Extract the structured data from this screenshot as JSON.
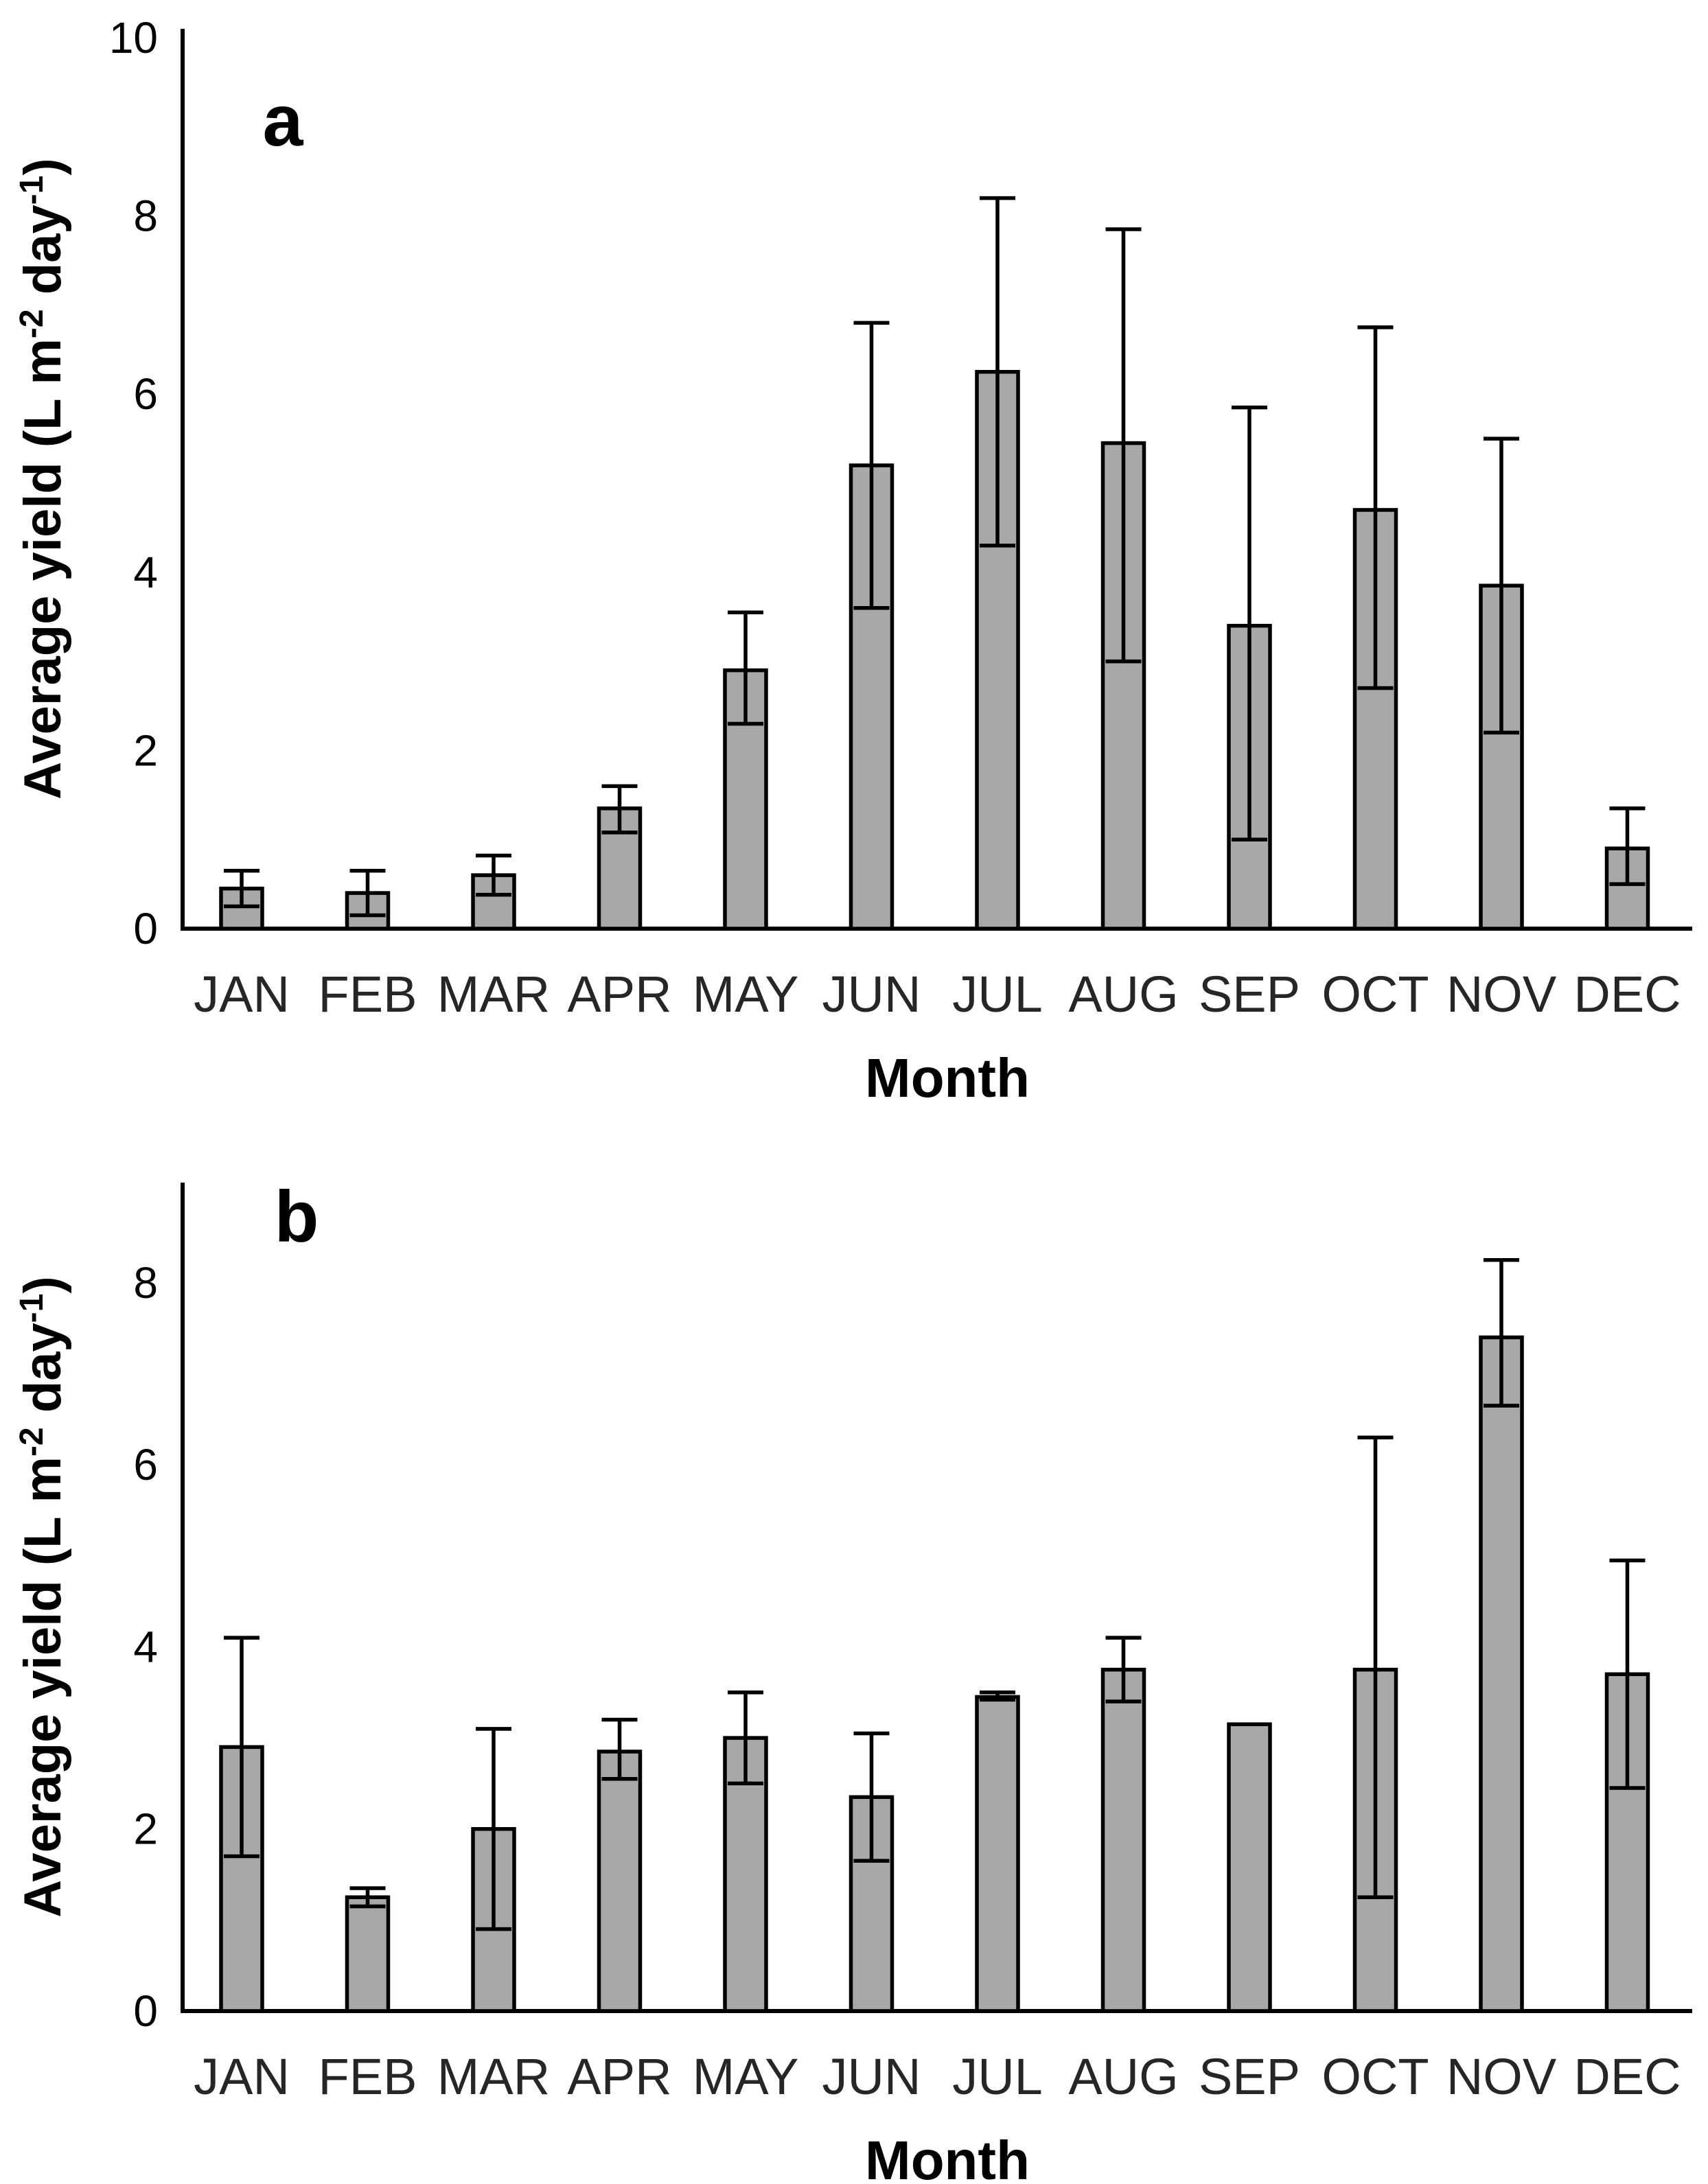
{
  "figure": {
    "background": "#ffffff",
    "ylabel": "Average yield (L m⁻² day⁻¹)",
    "ylabel_parts": [
      {
        "text": "Average yield (L m",
        "sup": false
      },
      {
        "text": "-2",
        "sup": true
      },
      {
        "text": " day",
        "sup": false
      },
      {
        "text": "-1",
        "sup": true
      },
      {
        "text": ")",
        "sup": false
      }
    ],
    "xlabel": "Month",
    "colors": {
      "bar_fill": "#a8a8a8",
      "bar_stroke": "#000000",
      "axis": "#000000",
      "tick_text": "#000000",
      "month_text": "#262626",
      "title_text": "#000000"
    }
  },
  "chart_data": [
    {
      "type": "bar",
      "panel_label": "a",
      "title": "",
      "ylabel": "Average yield (L m⁻² day⁻¹)",
      "xlabel": "Month",
      "categories": [
        "JAN",
        "FEB",
        "MAR",
        "APR",
        "MAY",
        "JUN",
        "JUL",
        "AUG",
        "SEP",
        "OCT",
        "NOV",
        "DEC"
      ],
      "values": [
        0.45,
        0.4,
        0.6,
        1.35,
        2.9,
        5.2,
        6.25,
        5.45,
        3.4,
        4.7,
        3.85,
        0.9
      ],
      "error_low": [
        0.25,
        0.15,
        0.38,
        1.08,
        2.3,
        3.6,
        4.3,
        3.0,
        1.0,
        2.7,
        2.2,
        0.5
      ],
      "error_high": [
        0.65,
        0.65,
        0.82,
        1.6,
        3.55,
        6.8,
        8.2,
        7.85,
        5.85,
        6.75,
        5.5,
        1.35
      ],
      "yticks": [
        0,
        2,
        4,
        6,
        8,
        10
      ],
      "ylim": [
        0,
        10.1
      ],
      "grid": false,
      "legend": null
    },
    {
      "type": "bar",
      "panel_label": "b",
      "title": "",
      "ylabel": "Average yield (L m⁻² day⁻¹)",
      "xlabel": "Month",
      "categories": [
        "JAN",
        "FEB",
        "MAR",
        "APR",
        "MAY",
        "JUN",
        "JUL",
        "AUG",
        "SEP",
        "OCT",
        "NOV",
        "DEC"
      ],
      "values": [
        2.9,
        1.25,
        2.0,
        2.85,
        3.0,
        2.35,
        3.45,
        3.75,
        3.15,
        3.75,
        7.4,
        3.7
      ],
      "error_low": [
        1.7,
        1.15,
        0.9,
        2.55,
        2.5,
        1.65,
        3.42,
        3.4,
        3.15,
        1.25,
        6.65,
        2.45
      ],
      "error_high": [
        4.1,
        1.35,
        3.1,
        3.2,
        3.5,
        3.05,
        3.5,
        4.1,
        3.15,
        6.3,
        8.25,
        4.95
      ],
      "yticks": [
        0,
        2,
        4,
        6,
        8
      ],
      "ylim": [
        0,
        9.1
      ],
      "grid": false,
      "legend": null
    }
  ]
}
